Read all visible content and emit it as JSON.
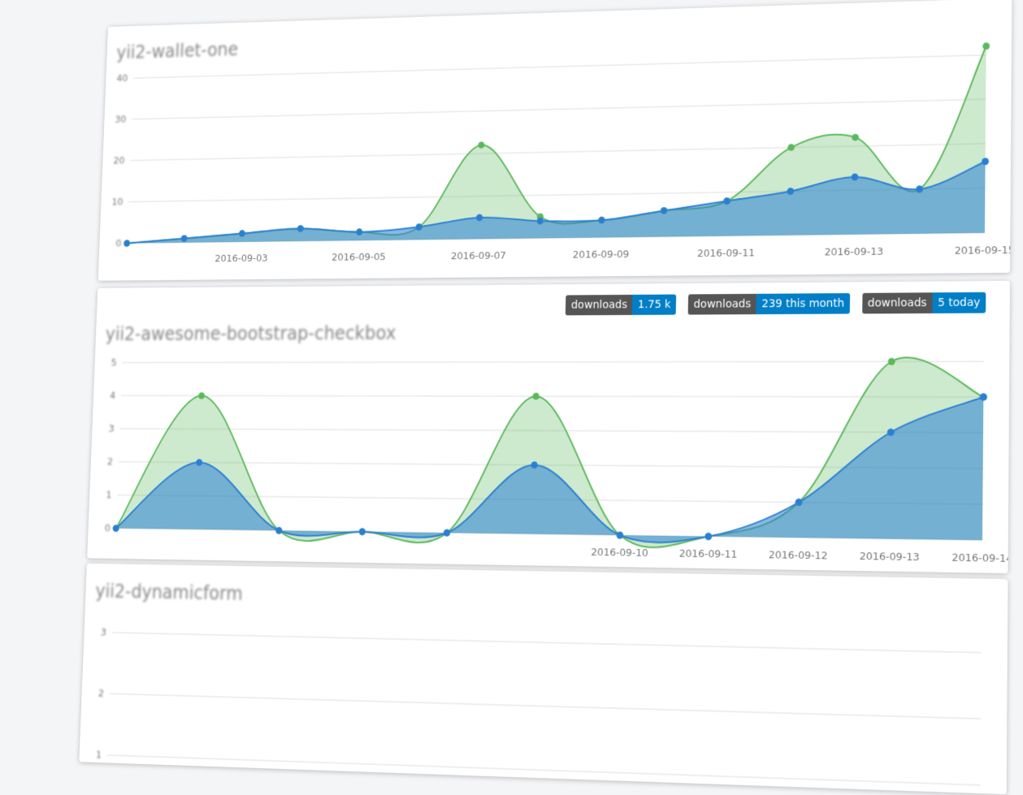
{
  "panels": [
    {
      "title": "yii2-wallet-one",
      "chart": {
        "type": "area",
        "categories": [
          null,
          null,
          "2016-09-03",
          null,
          "2016-09-05",
          null,
          "2016-09-07",
          null,
          "2016-09-09",
          null,
          "2016-09-11",
          null,
          "2016-09-13",
          null,
          "2016-09-15"
        ],
        "series": [
          {
            "color": "#5cb85c",
            "values": [
              0,
              1,
              2,
              3,
              2,
              3,
              22,
              5,
              4,
              6,
              8,
              20,
              22,
              10,
              42
            ]
          },
          {
            "color": "#2a7fd4",
            "values": [
              0,
              1,
              2,
              3,
              2,
              3,
              5,
              4,
              4,
              6,
              8,
              10,
              13,
              10,
              16
            ]
          }
        ],
        "ylim": [
          0,
          42
        ],
        "yticks": [
          0,
          10,
          20,
          30,
          40
        ],
        "grid": true
      }
    },
    {
      "title": "yii2-awesome-bootstrap-checkbox",
      "badges": [
        {
          "label": "downloads",
          "value": "1.75 k"
        },
        {
          "label": "downloads",
          "value": "239 this month"
        },
        {
          "label": "downloads",
          "value": "5 today"
        }
      ],
      "chart": {
        "type": "area",
        "categories": [
          null,
          null,
          null,
          null,
          null,
          null,
          "2016-09-10",
          "2016-09-11",
          "2016-09-12",
          "2016-09-13",
          "2016-09-14"
        ],
        "series": [
          {
            "color": "#5cb85c",
            "values": [
              0,
              4,
              0,
              0,
              0,
              4,
              0,
              0,
              1,
              5,
              4
            ]
          },
          {
            "color": "#2a7fd4",
            "values": [
              0,
              2,
              0,
              0,
              0,
              2,
              0,
              0,
              1,
              3,
              4
            ]
          }
        ],
        "ylim": [
          0,
          5
        ],
        "yticks": [
          0,
          1,
          2,
          3,
          4,
          5
        ],
        "grid": true
      }
    },
    {
      "title": "yii2-dynamicform",
      "chart": {
        "type": "area",
        "categories": [],
        "series": [],
        "ylim": [
          0,
          3
        ],
        "yticks": [
          1,
          2,
          3
        ],
        "grid": true
      }
    }
  ]
}
